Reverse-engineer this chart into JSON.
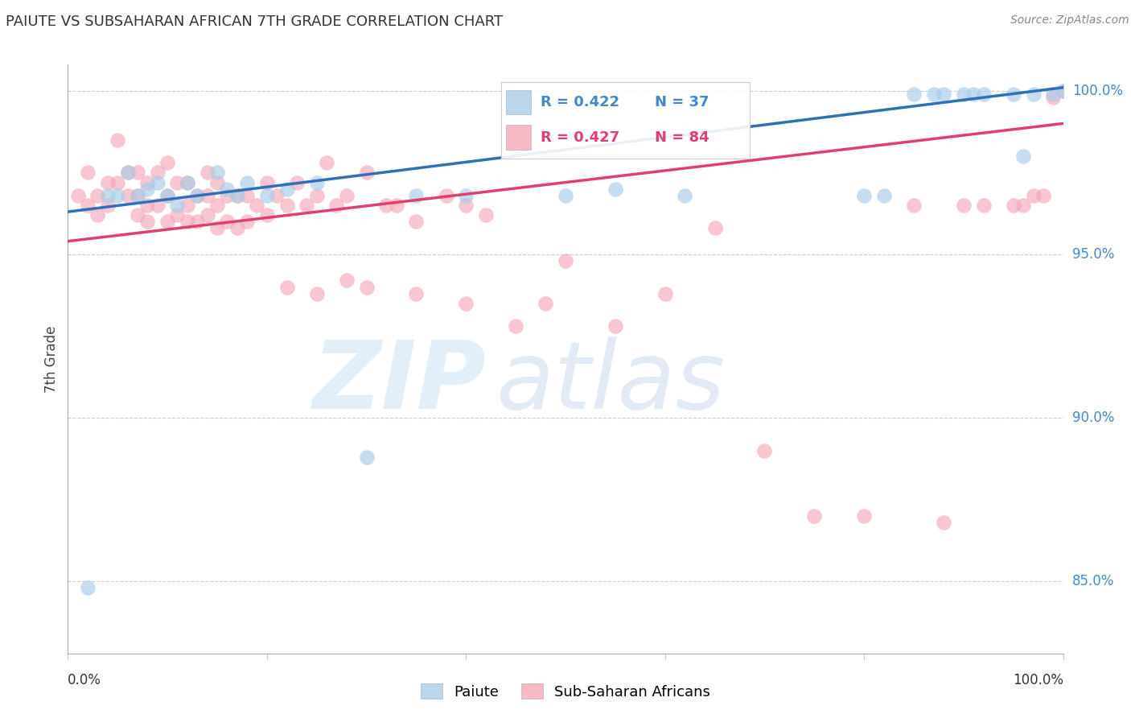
{
  "title": "PAIUTE VS SUBSAHARAN AFRICAN 7TH GRADE CORRELATION CHART",
  "source": "Source: ZipAtlas.com",
  "ylabel": "7th Grade",
  "y_tick_labels": [
    "85.0%",
    "90.0%",
    "95.0%",
    "100.0%"
  ],
  "y_tick_values": [
    0.85,
    0.9,
    0.95,
    1.0
  ],
  "legend_blue_r": "R = 0.422",
  "legend_blue_n": "N = 37",
  "legend_pink_r": "R = 0.427",
  "legend_pink_n": "N = 84",
  "legend_label_blue": "Paiute",
  "legend_label_pink": "Sub-Saharan Africans",
  "blue_color": "#a8cce8",
  "pink_color": "#f4a8b8",
  "blue_line_color": "#3070b8",
  "pink_line_color": "#e04070",
  "blue_legend_text_color": "#4488cc",
  "pink_legend_text_color": "#e04070",
  "right_axis_color": "#4488cc",
  "blue_x": [
    0.02,
    0.04,
    0.05,
    0.06,
    0.07,
    0.08,
    0.09,
    0.1,
    0.11,
    0.12,
    0.13,
    0.15,
    0.16,
    0.17,
    0.18,
    0.2,
    0.22,
    0.25,
    0.3,
    0.35,
    0.4,
    0.5,
    0.55,
    0.62,
    0.8,
    0.82,
    0.85,
    0.87,
    0.88,
    0.9,
    0.91,
    0.92,
    0.95,
    0.96,
    0.97,
    0.99,
    1.0
  ],
  "blue_y": [
    0.848,
    0.968,
    0.968,
    0.975,
    0.968,
    0.97,
    0.972,
    0.968,
    0.965,
    0.972,
    0.968,
    0.975,
    0.97,
    0.968,
    0.972,
    0.968,
    0.97,
    0.972,
    0.888,
    0.968,
    0.968,
    0.968,
    0.97,
    0.968,
    0.968,
    0.968,
    0.999,
    0.999,
    0.999,
    0.999,
    0.999,
    0.999,
    0.999,
    0.98,
    0.999,
    0.999,
    1.0
  ],
  "pink_x": [
    0.01,
    0.02,
    0.02,
    0.03,
    0.03,
    0.04,
    0.04,
    0.05,
    0.05,
    0.06,
    0.06,
    0.07,
    0.07,
    0.07,
    0.08,
    0.08,
    0.08,
    0.09,
    0.09,
    0.1,
    0.1,
    0.1,
    0.11,
    0.11,
    0.12,
    0.12,
    0.12,
    0.13,
    0.13,
    0.14,
    0.14,
    0.14,
    0.15,
    0.15,
    0.15,
    0.16,
    0.16,
    0.17,
    0.17,
    0.18,
    0.18,
    0.19,
    0.2,
    0.2,
    0.21,
    0.22,
    0.23,
    0.24,
    0.25,
    0.26,
    0.27,
    0.28,
    0.3,
    0.32,
    0.33,
    0.35,
    0.38,
    0.4,
    0.42,
    0.45,
    0.48,
    0.5,
    0.55,
    0.6,
    0.65,
    0.7,
    0.75,
    0.8,
    0.85,
    0.88,
    0.9,
    0.92,
    0.95,
    0.96,
    0.97,
    0.98,
    0.99,
    1.0,
    0.22,
    0.25,
    0.28,
    0.3,
    0.35,
    0.4
  ],
  "pink_y": [
    0.968,
    0.975,
    0.965,
    0.968,
    0.962,
    0.972,
    0.965,
    0.985,
    0.972,
    0.975,
    0.968,
    0.975,
    0.968,
    0.962,
    0.972,
    0.965,
    0.96,
    0.975,
    0.965,
    0.978,
    0.968,
    0.96,
    0.972,
    0.962,
    0.972,
    0.965,
    0.96,
    0.968,
    0.96,
    0.975,
    0.968,
    0.962,
    0.972,
    0.965,
    0.958,
    0.968,
    0.96,
    0.968,
    0.958,
    0.968,
    0.96,
    0.965,
    0.972,
    0.962,
    0.968,
    0.965,
    0.972,
    0.965,
    0.968,
    0.978,
    0.965,
    0.968,
    0.975,
    0.965,
    0.965,
    0.96,
    0.968,
    0.965,
    0.962,
    0.928,
    0.935,
    0.948,
    0.928,
    0.938,
    0.958,
    0.89,
    0.87,
    0.87,
    0.965,
    0.868,
    0.965,
    0.965,
    0.965,
    0.965,
    0.968,
    0.968,
    0.998,
    1.0,
    0.94,
    0.938,
    0.942,
    0.94,
    0.938,
    0.935
  ]
}
